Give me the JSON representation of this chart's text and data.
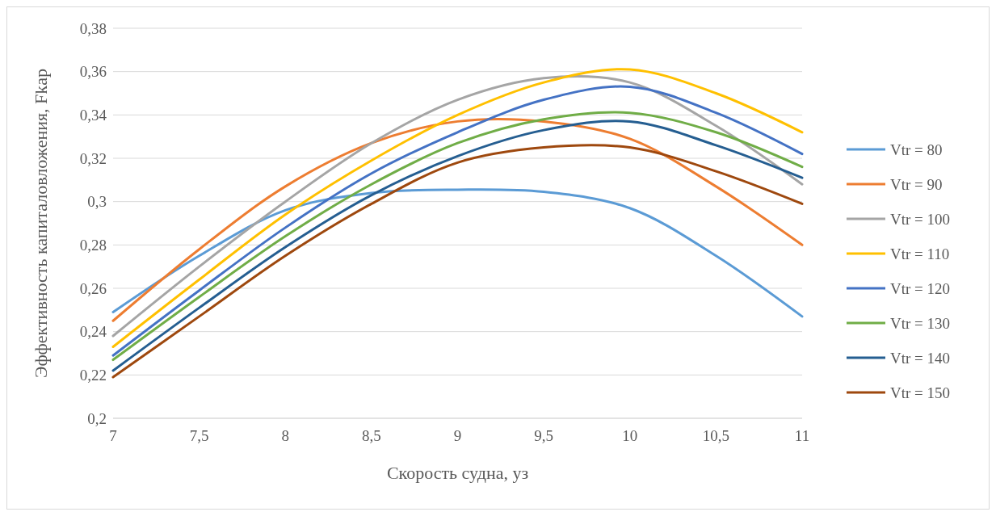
{
  "chart_data": {
    "type": "line",
    "xlabel": "Скорость судна, уз",
    "ylabel": "Эффективность капиталовложения, Fkap",
    "x": [
      7,
      7.5,
      8,
      8.5,
      9,
      9.5,
      10,
      10.5,
      11
    ],
    "xlim": [
      7,
      11
    ],
    "xticks": [
      7,
      {
        "value": 7.5,
        "label": "7,5"
      },
      8,
      {
        "value": 8.5,
        "label": "8,5"
      },
      9,
      {
        "value": 9.5,
        "label": "9,5"
      },
      10,
      {
        "value": 10.5,
        "label": "10,5"
      },
      11
    ],
    "ylim": [
      0.2,
      0.38
    ],
    "yticks": [
      {
        "value": 0.2,
        "label": "0,2"
      },
      {
        "value": 0.22,
        "label": "0,22"
      },
      {
        "value": 0.24,
        "label": "0,24"
      },
      {
        "value": 0.26,
        "label": "0,26"
      },
      {
        "value": 0.28,
        "label": "0,28"
      },
      {
        "value": 0.3,
        "label": "0,3"
      },
      {
        "value": 0.32,
        "label": "0,32"
      },
      {
        "value": 0.34,
        "label": "0,34"
      },
      {
        "value": 0.36,
        "label": "0,36"
      },
      {
        "value": 0.38,
        "label": "0,38"
      }
    ],
    "grid": "y",
    "legend": "right",
    "marker": "none",
    "line_style": "solid",
    "series": [
      {
        "name": "Vtr = 80",
        "color": "#5b9bd5",
        "values": [
          0.249,
          0.275,
          0.296,
          0.304,
          0.3055,
          0.3045,
          0.297,
          0.275,
          0.247
        ]
      },
      {
        "name": "Vtr = 90",
        "color": "#ed7d31",
        "values": [
          0.245,
          0.278,
          0.307,
          0.327,
          0.337,
          0.337,
          0.329,
          0.307,
          0.28
        ]
      },
      {
        "name": "Vtr = 100",
        "color": "#a5a5a5",
        "values": [
          0.238,
          0.27,
          0.3,
          0.327,
          0.347,
          0.357,
          0.355,
          0.335,
          0.308
        ]
      },
      {
        "name": "Vtr = 110",
        "color": "#ffc000",
        "values": [
          0.233,
          0.264,
          0.294,
          0.319,
          0.34,
          0.355,
          0.361,
          0.35,
          0.332
        ]
      },
      {
        "name": "Vtr = 120",
        "color": "#4472c4",
        "values": [
          0.229,
          0.259,
          0.288,
          0.313,
          0.332,
          0.347,
          0.353,
          0.341,
          0.322
        ]
      },
      {
        "name": "Vtr = 130",
        "color": "#70ad47",
        "values": [
          0.227,
          0.256,
          0.284,
          0.308,
          0.327,
          0.338,
          0.341,
          0.332,
          0.316
        ]
      },
      {
        "name": "Vtr = 140",
        "color": "#255e91",
        "values": [
          0.222,
          0.251,
          0.279,
          0.303,
          0.321,
          0.333,
          0.337,
          0.326,
          0.311
        ]
      },
      {
        "name": "Vtr = 150",
        "color": "#9e480e",
        "values": [
          0.219,
          0.247,
          0.275,
          0.299,
          0.318,
          0.325,
          0.325,
          0.314,
          0.299
        ]
      }
    ]
  }
}
